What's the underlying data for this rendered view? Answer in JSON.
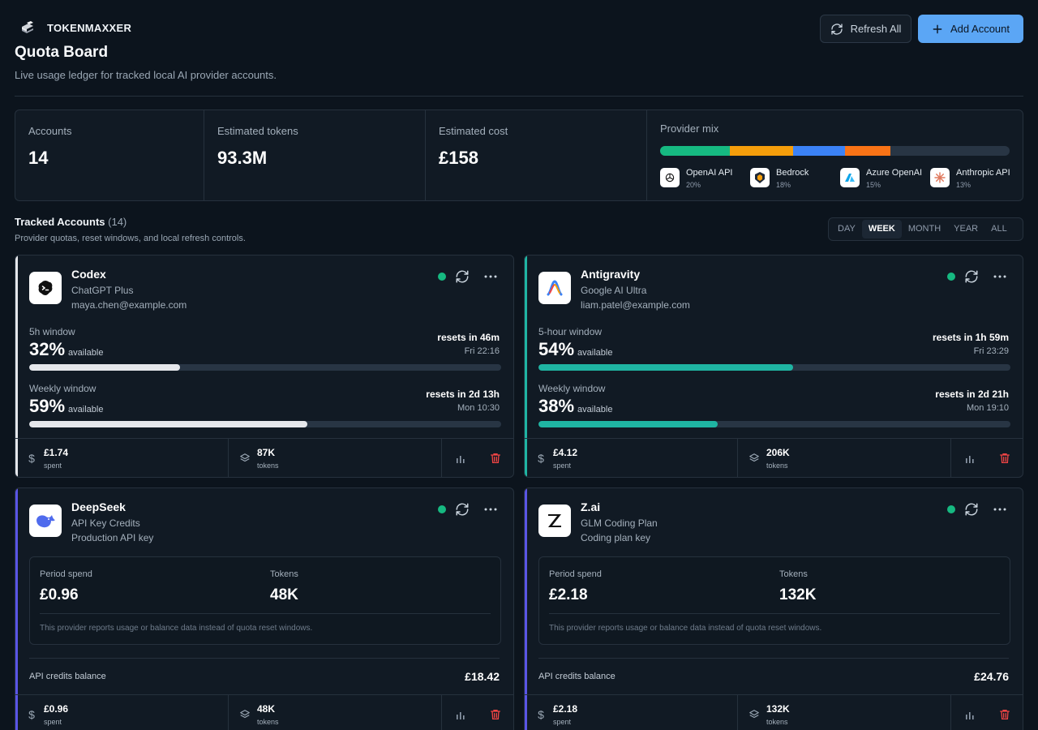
{
  "brand": {
    "name": "TOKENMAXXER",
    "logo_icon": "stack-icon"
  },
  "header": {
    "title": "Quota Board",
    "subtitle": "Live usage ledger for tracked local AI provider accounts.",
    "refresh_label": "Refresh All",
    "add_label": "Add Account"
  },
  "stats": {
    "accounts_label": "Accounts",
    "accounts_value": "14",
    "tokens_label": "Estimated tokens",
    "tokens_value": "93.3M",
    "cost_label": "Estimated cost",
    "cost_value": "£158",
    "mix_label": "Provider mix"
  },
  "provider_mix": [
    {
      "name": "OpenAI API",
      "pct": "20%",
      "share": 20,
      "color": "#16b981",
      "icon": "openai-icon"
    },
    {
      "name": "Bedrock",
      "pct": "18%",
      "share": 18,
      "color": "#f59e0b",
      "icon": "bedrock-icon"
    },
    {
      "name": "Azure OpenAI",
      "pct": "15%",
      "share": 15,
      "color": "#3b82f6",
      "icon": "azure-icon"
    },
    {
      "name": "Anthropic API",
      "pct": "13%",
      "share": 13,
      "color": "#f97316",
      "icon": "anthropic-icon"
    }
  ],
  "tracked": {
    "title": "Tracked Accounts",
    "count": "(14)",
    "subtitle": "Provider quotas, reset windows, and local refresh controls.",
    "ranges": [
      "DAY",
      "WEEK",
      "MONTH",
      "YEAR",
      "ALL"
    ],
    "active_range": "WEEK"
  },
  "cards": [
    {
      "name": "Codex",
      "plan": "ChatGPT Plus",
      "email": "maya.chen@example.com",
      "accent": "#e5e7eb",
      "bar_color": "#e5e7eb",
      "logo_icon": "codex-icon",
      "status": "online",
      "windows": [
        {
          "label": "5h window",
          "pct": "32%",
          "available_label": "available",
          "fill": 0.32,
          "reset": "resets in 46m",
          "time": "Fri 22:16"
        },
        {
          "label": "Weekly window",
          "pct": "59%",
          "available_label": "available",
          "fill": 0.59,
          "reset": "resets in 2d 13h",
          "time": "Mon 10:30"
        }
      ],
      "spent": "£1.74",
      "spent_label": "spent",
      "tokens": "87K",
      "tokens_label": "tokens"
    },
    {
      "name": "Antigravity",
      "plan": "Google AI Ultra",
      "email": "liam.patel@example.com",
      "accent": "#1fb5a3",
      "bar_color": "#1fb5a3",
      "logo_icon": "antigravity-icon",
      "status": "online",
      "windows": [
        {
          "label": "5-hour window",
          "pct": "54%",
          "available_label": "available",
          "fill": 0.54,
          "reset": "resets in 1h 59m",
          "time": "Fri 23:29"
        },
        {
          "label": "Weekly window",
          "pct": "38%",
          "available_label": "available",
          "fill": 0.38,
          "reset": "resets in 2d 21h",
          "time": "Mon 19:10"
        }
      ],
      "spent": "£4.12",
      "spent_label": "spent",
      "tokens": "206K",
      "tokens_label": "tokens"
    },
    {
      "name": "DeepSeek",
      "plan": "API Key Credits",
      "email": "Production API key",
      "accent": "#5a55e6",
      "logo_icon": "deepseek-whale-icon",
      "status": "online",
      "period_spend_label": "Period spend",
      "period_spend": "£0.96",
      "tokens_box_label": "Tokens",
      "tokens_box": "48K",
      "note": "This provider reports usage or balance data instead of quota reset windows.",
      "balance_label": "API credits balance",
      "balance": "£18.42",
      "spent": "£0.96",
      "spent_label": "spent",
      "tokens": "48K",
      "tokens_label": "tokens"
    },
    {
      "name": "Z.ai",
      "plan": "GLM Coding Plan",
      "email": "Coding plan key",
      "accent": "#5a55e6",
      "logo_icon": "zai-icon",
      "status": "online",
      "period_spend_label": "Period spend",
      "period_spend": "£2.18",
      "tokens_box_label": "Tokens",
      "tokens_box": "132K",
      "note": "This provider reports usage or balance data instead of quota reset windows.",
      "balance_label": "API credits balance",
      "balance": "£24.76",
      "spent": "£2.18",
      "spent_label": "spent",
      "tokens": "132K",
      "tokens_label": "tokens"
    }
  ]
}
